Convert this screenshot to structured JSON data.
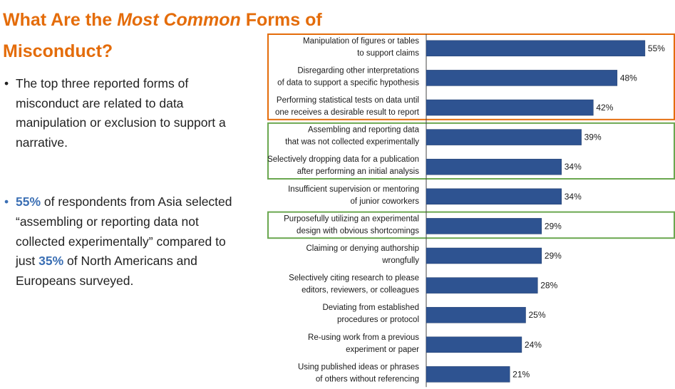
{
  "slide": {
    "title_part1": "What Are the ",
    "title_emph": "Most Common",
    "title_part2": " Forms of",
    "title_line2": "Misconduct?",
    "bullets": [
      {
        "text": "The top three reported forms of misconduct are related to data manipulation or exclusion to support a narrative."
      },
      {
        "pct1": "55%",
        "text1": " of respondents from Asia selected “assembling or reporting data not collected experimentally” compared to just ",
        "pct2": "35%",
        "text2": " of North Americans and Europeans surveyed."
      }
    ]
  },
  "chart_data": {
    "type": "bar",
    "orientation": "horizontal",
    "categories": [
      [
        "Manipulation of figures or tables",
        "to support claims"
      ],
      [
        "Disregarding other interpretations",
        "of data to support a specific hypothesis"
      ],
      [
        "Performing statistical tests on data until",
        "one receives a desirable result to report"
      ],
      [
        "Assembling and reporting data",
        "that was not collected experimentally"
      ],
      [
        "Selectively dropping data for a publication",
        "after performing an initial analysis"
      ],
      [
        "Insufficient supervision or mentoring",
        "of junior coworkers"
      ],
      [
        "Purposefully utilizing an experimental",
        "design with obvious shortcomings"
      ],
      [
        "Claiming or denying authorship",
        "wrongfully"
      ],
      [
        "Selectively citing research to please",
        "editors, reviewers, or colleagues"
      ],
      [
        "Deviating from established",
        "procedures or protocol"
      ],
      [
        "Re-using work from a previous",
        "experiment or paper"
      ],
      [
        "Using published ideas or phrases",
        "of others without referencing"
      ]
    ],
    "values": [
      55,
      48,
      42,
      39,
      34,
      34,
      29,
      29,
      28,
      25,
      24,
      21
    ],
    "value_labels": [
      "55%",
      "48%",
      "42%",
      "39%",
      "34%",
      "34%",
      "29%",
      "29%",
      "28%",
      "25%",
      "24%",
      "21%"
    ],
    "unit": "%",
    "xlim": [
      0,
      60
    ],
    "bar_color": "#2e5391",
    "highlight_groups": [
      {
        "color": "#e46c0a",
        "categories": [
          0,
          1,
          2
        ]
      },
      {
        "color": "#6aa74f",
        "categories": [
          3,
          4
        ]
      },
      {
        "color": "#6aa74f",
        "categories": [
          6
        ]
      }
    ],
    "grid": false
  }
}
